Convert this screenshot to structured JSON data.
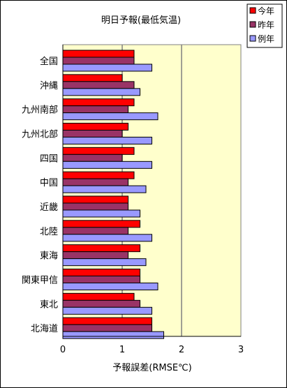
{
  "chart_data": {
    "type": "bar",
    "orientation": "horizontal",
    "title": "明日予報(最低気温)",
    "xlabel": "予報誤差(RMSE℃)",
    "ylabel": "",
    "xlim": [
      0,
      3
    ],
    "xticks": [
      0,
      1,
      2,
      3
    ],
    "grid": "vertical",
    "legend_position": "top-right",
    "plot_background": "#ffffcc",
    "categories": [
      "全国",
      "沖縄",
      "九州南部",
      "九州北部",
      "四国",
      "中国",
      "近畿",
      "北陸",
      "東海",
      "関東甲信",
      "東北",
      "北海道"
    ],
    "series": [
      {
        "name": "今年",
        "color": "#ff0000",
        "values": [
          1.2,
          1.0,
          1.2,
          1.1,
          1.2,
          1.2,
          1.1,
          1.3,
          1.3,
          1.3,
          1.2,
          1.5
        ]
      },
      {
        "name": "昨年",
        "color": "#993366",
        "values": [
          1.2,
          1.2,
          1.1,
          1.0,
          1.0,
          1.1,
          1.1,
          1.1,
          1.1,
          1.3,
          1.3,
          1.5
        ]
      },
      {
        "name": "例年",
        "color": "#9999ff",
        "values": [
          1.5,
          1.3,
          1.6,
          1.5,
          1.5,
          1.4,
          1.3,
          1.5,
          1.4,
          1.6,
          1.5,
          1.7
        ]
      }
    ]
  }
}
